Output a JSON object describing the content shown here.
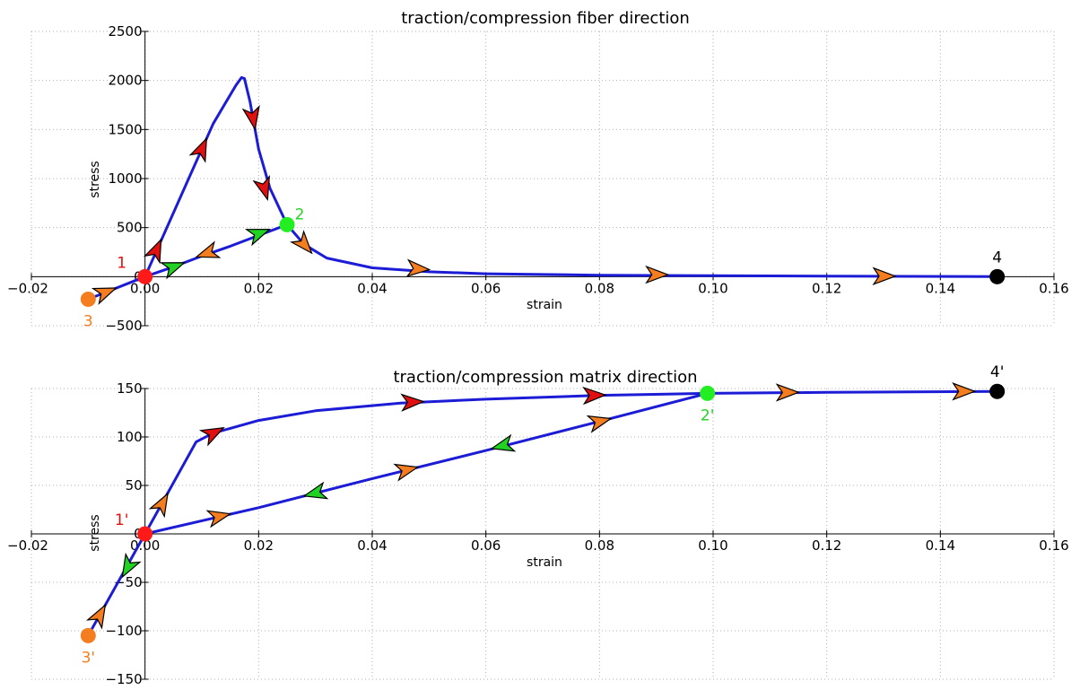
{
  "chart_data": [
    {
      "type": "line",
      "title": "traction/compression fiber direction",
      "xlabel": "strain",
      "ylabel": "stress",
      "xlim": [
        -0.02,
        0.16
      ],
      "ylim": [
        -500,
        2500
      ],
      "x_ticks": [
        -0.02,
        0.0,
        0.02,
        0.04,
        0.06,
        0.08,
        0.1,
        0.12,
        0.14,
        0.16
      ],
      "x_tick_labels": [
        "−0.02",
        "0.00",
        "0.02",
        "0.04",
        "0.06",
        "0.08",
        "0.10",
        "0.12",
        "0.14",
        "0.16"
      ],
      "y_ticks": [
        -500,
        0,
        500,
        1000,
        1500,
        2000,
        2500
      ],
      "y_tick_labels": [
        "−500",
        "0",
        "500",
        "1000",
        "1500",
        "2000",
        "2500"
      ],
      "grid": true,
      "series": [
        {
          "x": [
            -0.01,
            0.0,
            0.004,
            0.008,
            0.012,
            0.016,
            0.017,
            0.0175,
            0.0185,
            0.02,
            0.022,
            0.025,
            0.028,
            0.032,
            0.04,
            0.05,
            0.06,
            0.08,
            0.1,
            0.12,
            0.15
          ],
          "y": [
            -230,
            0,
            520,
            1040,
            1560,
            1950,
            2030,
            2020,
            1780,
            1300,
            900,
            530,
            330,
            190,
            90,
            50,
            30,
            15,
            10,
            5,
            0
          ]
        },
        {
          "x": [
            0.025,
            0.02,
            0.015,
            0.01,
            0.005,
            0.0
          ],
          "y": [
            530,
            420,
            310,
            210,
            100,
            0
          ]
        }
      ],
      "arrows": [
        {
          "x": -0.007,
          "y": -160,
          "dir": 1,
          "color": "#f47d20"
        },
        {
          "x": 0.002,
          "y": 270,
          "dir": 1,
          "color": "#e01010"
        },
        {
          "x": 0.01,
          "y": 1300,
          "dir": 1,
          "color": "#e01010"
        },
        {
          "x": 0.019,
          "y": 1620,
          "dir": 1,
          "color": "#e01010"
        },
        {
          "x": 0.021,
          "y": 900,
          "dir": 1,
          "color": "#e01010"
        },
        {
          "x": 0.028,
          "y": 330,
          "dir": 1,
          "color": "#f47d20"
        },
        {
          "x": 0.048,
          "y": 80,
          "dir": 1,
          "color": "#f47d20"
        },
        {
          "x": 0.09,
          "y": 20,
          "dir": 1,
          "color": "#f47d20"
        },
        {
          "x": 0.13,
          "y": 5,
          "dir": 1,
          "color": "#f47d20"
        },
        {
          "x": 0.005,
          "y": 100,
          "dir": -1,
          "color": "#22d222"
        },
        {
          "x": 0.011,
          "y": 240,
          "dir": 1,
          "color": "#f47d20"
        },
        {
          "x": 0.02,
          "y": 440,
          "dir": -1,
          "color": "#22d222"
        }
      ],
      "points": [
        {
          "label": "1",
          "x": 0.0,
          "y": 0,
          "color": "#ff1a1a",
          "label_color": "#e01010",
          "label_pos": "upper-left"
        },
        {
          "label": "2",
          "x": 0.025,
          "y": 530,
          "color": "#22ee22",
          "label_color": "#22d222",
          "label_pos": "upper-right"
        },
        {
          "label": "3",
          "x": -0.01,
          "y": -230,
          "color": "#f47d20",
          "label_color": "#f47d20",
          "label_pos": "below"
        },
        {
          "label": "4",
          "x": 0.15,
          "y": 0,
          "color": "#000000",
          "label_color": "#000000",
          "label_pos": "above"
        }
      ]
    },
    {
      "type": "line",
      "title": "traction/compression matrix direction",
      "xlabel": "strain",
      "ylabel": "stress",
      "xlim": [
        -0.02,
        0.16
      ],
      "ylim": [
        -150,
        150
      ],
      "x_ticks": [
        -0.02,
        0.0,
        0.02,
        0.04,
        0.06,
        0.08,
        0.1,
        0.12,
        0.14,
        0.16
      ],
      "x_tick_labels": [
        "−0.02",
        "0.00",
        "0.02",
        "0.04",
        "0.06",
        "0.08",
        "0.10",
        "0.12",
        "0.14",
        "0.16"
      ],
      "y_ticks": [
        -150,
        -100,
        -50,
        0,
        50,
        100,
        150
      ],
      "y_tick_labels": [
        "−150",
        "−100",
        "−50",
        "0",
        "50",
        "100",
        "150"
      ],
      "grid": true,
      "series": [
        {
          "x": [
            -0.01,
            0.0,
            0.009,
            0.012,
            0.02,
            0.03,
            0.045,
            0.06,
            0.08,
            0.099,
            0.12,
            0.15
          ],
          "y": [
            -105,
            0,
            95,
            104,
            117,
            127,
            135,
            139,
            143,
            145,
            146,
            147
          ]
        },
        {
          "x": [
            0.0,
            0.02,
            0.04,
            0.06,
            0.08,
            0.099
          ],
          "y": [
            0,
            27,
            57,
            86,
            116,
            145
          ]
        }
      ],
      "arrows": [
        {
          "x": -0.008,
          "y": -84,
          "dir": 1,
          "color": "#f47d20"
        },
        {
          "x": -0.003,
          "y": -34,
          "dir": -1,
          "color": "#22d222"
        },
        {
          "x": 0.003,
          "y": 31,
          "dir": 1,
          "color": "#f47d20"
        },
        {
          "x": 0.012,
          "y": 104,
          "dir": 1,
          "color": "#e01010"
        },
        {
          "x": 0.047,
          "y": 136,
          "dir": 1,
          "color": "#e01010"
        },
        {
          "x": 0.079,
          "y": 143,
          "dir": 1,
          "color": "#e01010"
        },
        {
          "x": 0.113,
          "y": 146,
          "dir": 1,
          "color": "#f47d20"
        },
        {
          "x": 0.144,
          "y": 147,
          "dir": 1,
          "color": "#f47d20"
        },
        {
          "x": 0.013,
          "y": 18,
          "dir": 1,
          "color": "#f47d20"
        },
        {
          "x": 0.03,
          "y": 42,
          "dir": -1,
          "color": "#22d222"
        },
        {
          "x": 0.046,
          "y": 66,
          "dir": 1,
          "color": "#f47d20"
        },
        {
          "x": 0.063,
          "y": 91,
          "dir": -1,
          "color": "#22d222"
        },
        {
          "x": 0.08,
          "y": 116,
          "dir": 1,
          "color": "#f47d20"
        }
      ],
      "points": [
        {
          "label": "1'",
          "x": 0.0,
          "y": 0,
          "color": "#ff1a1a",
          "label_color": "#e01010",
          "label_pos": "upper-left"
        },
        {
          "label": "2'",
          "x": 0.099,
          "y": 145,
          "color": "#22ee22",
          "label_color": "#22d222",
          "label_pos": "below"
        },
        {
          "label": "3'",
          "x": -0.01,
          "y": -105,
          "color": "#f47d20",
          "label_color": "#f47d20",
          "label_pos": "below"
        },
        {
          "label": "4'",
          "x": 0.15,
          "y": 147,
          "color": "#000000",
          "label_color": "#000000",
          "label_pos": "above"
        }
      ]
    }
  ]
}
